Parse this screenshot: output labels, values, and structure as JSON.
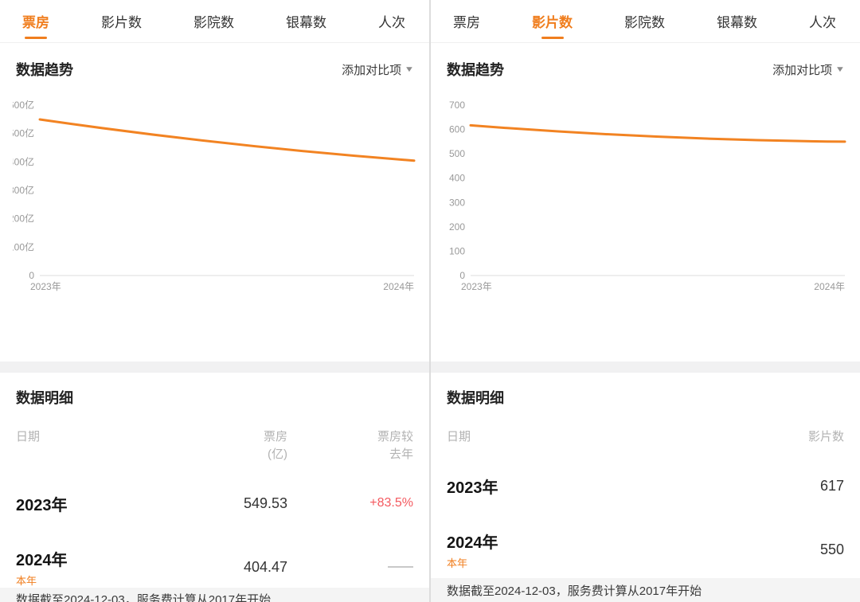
{
  "icons": {
    "chevron_down": "▼"
  },
  "colors": {
    "accent": "#f07e1e",
    "line": "#f28322",
    "positive_change": "#f4595f",
    "muted_text": "#999999"
  },
  "panels": [
    {
      "tabs": [
        {
          "label": "票房",
          "active": true
        },
        {
          "label": "影片数",
          "active": false
        },
        {
          "label": "影院数",
          "active": false
        },
        {
          "label": "银幕数",
          "active": false
        },
        {
          "label": "人次",
          "active": false
        }
      ],
      "trend": {
        "title": "数据趋势",
        "add_compare": "添加对比项"
      },
      "chart_data": {
        "type": "line",
        "x": [
          "2023年",
          "2024年"
        ],
        "series": [
          {
            "name": "票房(亿)",
            "values": [
              549.53,
              404.47
            ]
          }
        ],
        "ylim": [
          0,
          600
        ],
        "ytick_step": 100,
        "ytick_suffix": "亿",
        "line_color": "#f28322",
        "grid": false,
        "legend": "none"
      },
      "detail": {
        "title": "数据明细",
        "columns": [
          "日期",
          "票房\n(亿)",
          "票房较\n去年"
        ],
        "rows": [
          {
            "date": "2023年",
            "badge": "",
            "value": "549.53",
            "change": "+83.5%"
          },
          {
            "date": "2024年",
            "badge": "本年",
            "value": "404.47",
            "change": "——"
          }
        ]
      },
      "footer": "数据截至2024-12-03，服务费计算从2017年开始"
    },
    {
      "tabs": [
        {
          "label": "票房",
          "active": false
        },
        {
          "label": "影片数",
          "active": true
        },
        {
          "label": "影院数",
          "active": false
        },
        {
          "label": "银幕数",
          "active": false
        },
        {
          "label": "人次",
          "active": false
        }
      ],
      "trend": {
        "title": "数据趋势",
        "add_compare": "添加对比项"
      },
      "chart_data": {
        "type": "line",
        "x": [
          "2023年",
          "2024年"
        ],
        "series": [
          {
            "name": "影片数",
            "values": [
              617,
              550
            ]
          }
        ],
        "ylim": [
          0,
          700
        ],
        "ytick_step": 100,
        "ytick_suffix": "",
        "line_color": "#f28322",
        "grid": false,
        "legend": "none"
      },
      "detail": {
        "title": "数据明细",
        "columns": [
          "日期",
          "影片数"
        ],
        "rows": [
          {
            "date": "2023年",
            "badge": "",
            "value": "617"
          },
          {
            "date": "2024年",
            "badge": "本年",
            "value": "550"
          }
        ]
      },
      "footer": "数据截至2024-12-03，服务费计算从2017年开始"
    }
  ]
}
